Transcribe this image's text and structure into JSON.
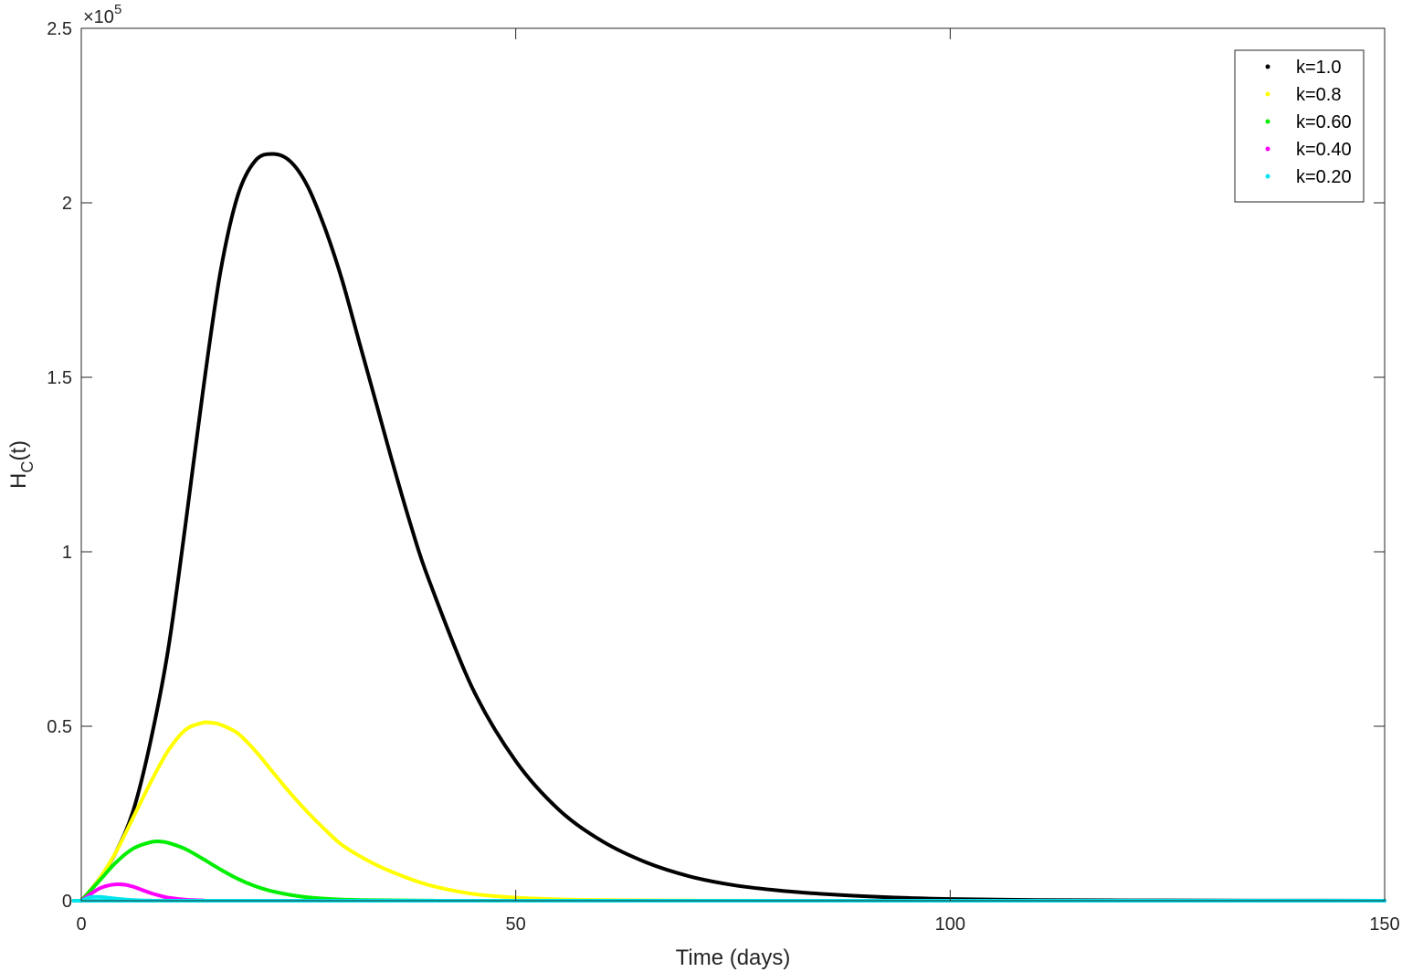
{
  "chart_data": {
    "type": "line",
    "xlabel": "Time (days)",
    "ylabel": "H",
    "ylabel_sub": "C",
    "ylabel_tail": "(t)",
    "xlim": [
      0,
      150
    ],
    "ylim": [
      0,
      2.5
    ],
    "y_exponent_label": "×10",
    "y_exponent_power": "5",
    "grid": false,
    "legend_position": "top-right",
    "x_ticks": [
      {
        "value": 0,
        "label": "0"
      },
      {
        "value": 50,
        "label": "50"
      },
      {
        "value": 100,
        "label": "100"
      },
      {
        "value": 150,
        "label": "150"
      }
    ],
    "y_ticks": [
      {
        "value": 0,
        "label": "0"
      },
      {
        "value": 0.5,
        "label": "0.5"
      },
      {
        "value": 1,
        "label": "1"
      },
      {
        "value": 1.5,
        "label": "1.5"
      },
      {
        "value": 2,
        "label": "2"
      },
      {
        "value": 2.5,
        "label": "2.5"
      }
    ],
    "series": [
      {
        "name": "k=1.0",
        "color": "#000000",
        "x": [
          0,
          2,
          4,
          6,
          8,
          10,
          12,
          14,
          16,
          18,
          20,
          22,
          24,
          26,
          28,
          30,
          32,
          34,
          36,
          38,
          40,
          45,
          50,
          55,
          60,
          65,
          70,
          75,
          80,
          85,
          90,
          95,
          100,
          110,
          120,
          130,
          140,
          150
        ],
        "y": [
          0,
          0.06,
          0.14,
          0.26,
          0.46,
          0.72,
          1.08,
          1.46,
          1.8,
          2.02,
          2.12,
          2.14,
          2.12,
          2.05,
          1.93,
          1.78,
          1.6,
          1.42,
          1.24,
          1.07,
          0.92,
          0.61,
          0.4,
          0.26,
          0.17,
          0.11,
          0.07,
          0.045,
          0.03,
          0.02,
          0.013,
          0.008,
          0.005,
          0.002,
          0.001,
          0.0004,
          0.0002,
          0.0001
        ]
      },
      {
        "name": "k=0.8",
        "color": "#ffff00",
        "x": [
          0,
          2,
          4,
          6,
          8,
          10,
          12,
          14,
          15,
          16,
          18,
          20,
          22,
          24,
          26,
          28,
          30,
          33,
          36,
          40,
          45,
          50,
          55,
          60,
          70,
          80,
          100,
          150
        ],
        "y": [
          0,
          0.06,
          0.14,
          0.24,
          0.34,
          0.43,
          0.49,
          0.51,
          0.51,
          0.505,
          0.48,
          0.43,
          0.37,
          0.31,
          0.255,
          0.205,
          0.16,
          0.115,
          0.08,
          0.045,
          0.02,
          0.009,
          0.004,
          0.002,
          0.0005,
          0.0001,
          0,
          0
        ]
      },
      {
        "name": "k=0.60",
        "color": "#00ee00",
        "x": [
          0,
          2,
          4,
          6,
          8,
          9,
          10,
          12,
          14,
          16,
          18,
          20,
          22,
          25,
          28,
          32,
          40,
          50,
          150
        ],
        "y": [
          0,
          0.055,
          0.11,
          0.15,
          0.168,
          0.17,
          0.166,
          0.148,
          0.12,
          0.09,
          0.063,
          0.042,
          0.027,
          0.013,
          0.006,
          0.002,
          0.0003,
          0,
          0
        ]
      },
      {
        "name": "k=0.40",
        "color": "#ff00ff",
        "x": [
          0,
          1,
          2,
          3,
          4,
          5,
          6,
          7,
          8,
          9,
          10,
          12,
          14,
          20,
          150
        ],
        "y": [
          0,
          0.018,
          0.034,
          0.043,
          0.047,
          0.046,
          0.04,
          0.031,
          0.022,
          0.015,
          0.009,
          0.003,
          0.001,
          0,
          0
        ]
      },
      {
        "name": "k=0.20",
        "color": "#00e5ee",
        "x": [
          0,
          1,
          2,
          3,
          4,
          6,
          8,
          10,
          150
        ],
        "y": [
          0,
          0.01,
          0.011,
          0.009,
          0.006,
          0.002,
          0.0005,
          0,
          0
        ]
      }
    ]
  }
}
